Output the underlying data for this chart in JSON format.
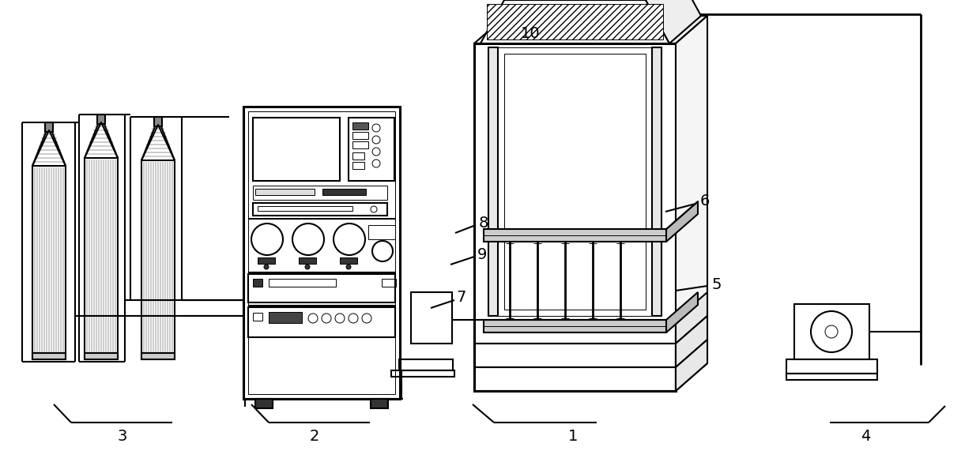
{
  "bg": "#ffffff",
  "lc": "#000000",
  "lw_thin": 0.7,
  "lw_med": 1.5,
  "lw_thick": 2.2
}
